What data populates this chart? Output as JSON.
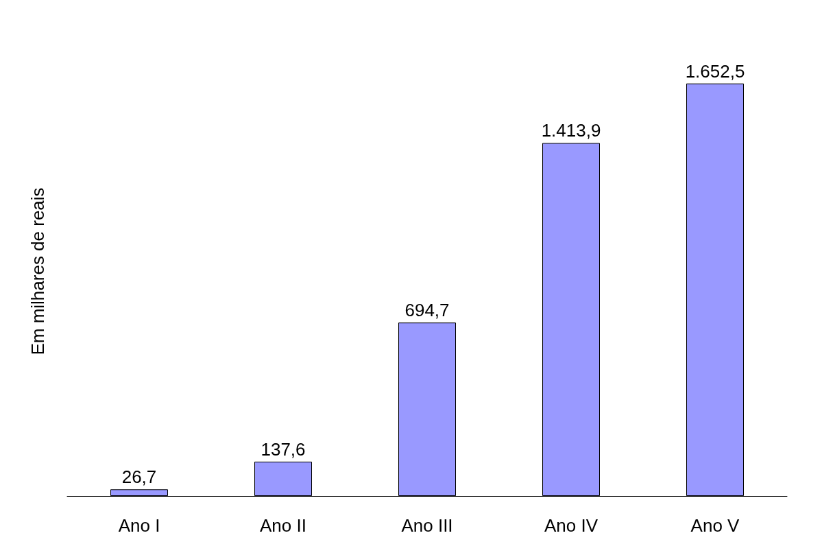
{
  "chart_data": {
    "type": "bar",
    "ylabel": "Em milhares de reais",
    "categories": [
      "Ano I",
      "Ano II",
      "Ano III",
      "Ano IV",
      "Ano V"
    ],
    "values": [
      26.7,
      137.6,
      694.7,
      1413.9,
      1652.5
    ],
    "value_labels": [
      "26,7",
      "137,6",
      "694,7",
      "1.413,9",
      "1.652,5"
    ],
    "color": "#9999ff",
    "grid": false
  }
}
